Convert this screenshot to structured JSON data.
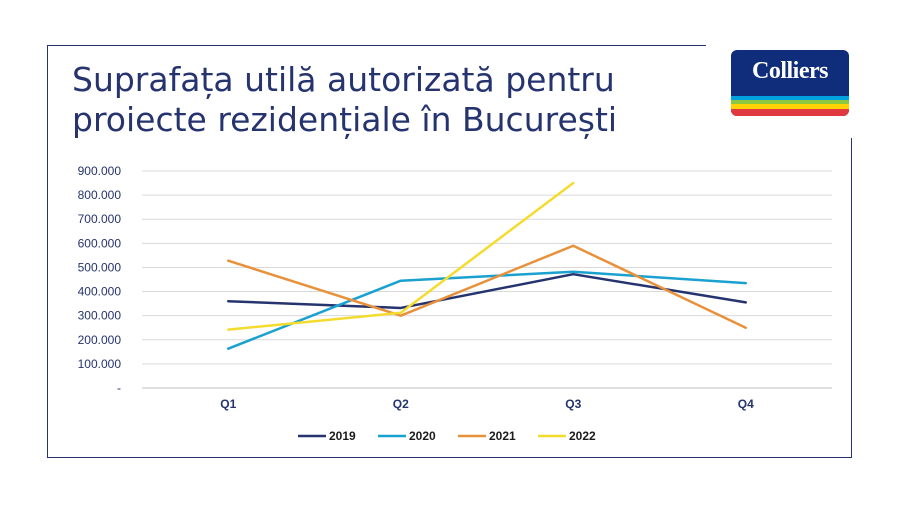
{
  "title": "Suprafața utilă autorizată pentru proiecte rezidențiale în București",
  "logo": {
    "text": "Colliers"
  },
  "colors": {
    "frame": "#25346e",
    "title": "#25346e",
    "tick_labels": "#25346e",
    "grid": "#d9d9d9",
    "axis": "#bfbfbf"
  },
  "chart_data": {
    "type": "line",
    "categories": [
      "Q1",
      "Q2",
      "Q3",
      "Q4"
    ],
    "y_ticks": [
      "-",
      "100.000",
      "200.000",
      "300.000",
      "400.000",
      "500.000",
      "600.000",
      "700.000",
      "800.000",
      "900.000"
    ],
    "ylim": [
      0,
      900000
    ],
    "grid": true,
    "legend_position": "bottom",
    "series": [
      {
        "name": "2019",
        "color": "#25346e",
        "values": [
          360000,
          332000,
          472000,
          355000
        ]
      },
      {
        "name": "2020",
        "color": "#1aa1d0",
        "values": [
          163000,
          445000,
          482000,
          435000
        ]
      },
      {
        "name": "2021",
        "color": "#e8913a",
        "values": [
          528000,
          300000,
          590000,
          250000
        ]
      },
      {
        "name": "2022",
        "color": "#f4dc2f",
        "values": [
          242000,
          312000,
          850000,
          null
        ]
      }
    ]
  }
}
